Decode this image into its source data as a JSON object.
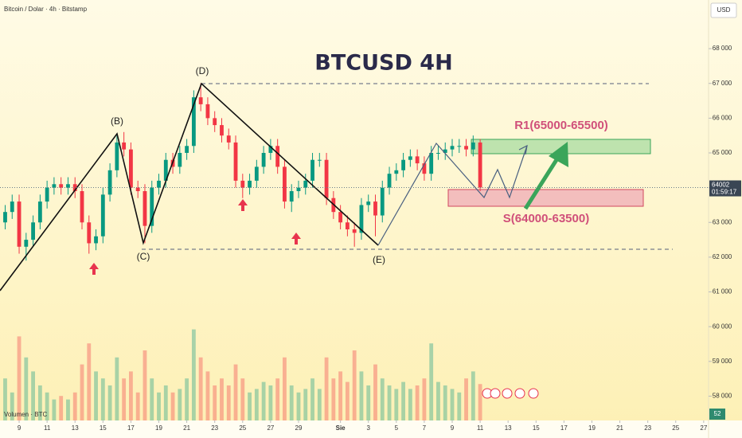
{
  "chart_data": {
    "type": "candlestick",
    "title": "BTCUSD 4H",
    "subtitle": "Bitcoin / Dolar · 4h · Bitstamp",
    "currency": "USD",
    "countdown": "01:59:17",
    "volume_label": "Volumen · BTC",
    "annotations": [
      "(B)",
      "(C)",
      "(D)",
      "(E)",
      "R1(65000-65500)",
      "S(64000-63500)"
    ],
    "color_up": "#089981",
    "color_down": "#f23645",
    "x": [
      -1,
      -0.5,
      0,
      0.5,
      1,
      1.5,
      2,
      2.5,
      3,
      3.5,
      4,
      4.5,
      5,
      5.5,
      6,
      6.5,
      7,
      7.5,
      8,
      8.5,
      9,
      9.5,
      10,
      10.5,
      11,
      11.5,
      12,
      12.5,
      13,
      13.5,
      14,
      14.5,
      15,
      15.5,
      16,
      16.5,
      17,
      17.5,
      18,
      18.5,
      19,
      19.5,
      20,
      20.5,
      21,
      21.5,
      22,
      22.5,
      23,
      23.5,
      24,
      24.5,
      25,
      25.5,
      26,
      26.5,
      27,
      27.5,
      28,
      28.5,
      29,
      29.5,
      30,
      30.5,
      31,
      31.5,
      32,
      32.5,
      33
    ],
    "open": [
      63000,
      63300,
      63600,
      62300,
      62500,
      63000,
      63600,
      64000,
      64100,
      64000,
      64100,
      63900,
      63000,
      62400,
      62600,
      63800,
      64500,
      65300,
      65100,
      64000,
      63900,
      62900,
      64000,
      64200,
      64800,
      64600,
      65000,
      65200,
      66600,
      66400,
      66000,
      65800,
      65500,
      65300,
      64200,
      64000,
      64200,
      64600,
      65000,
      65200,
      64600,
      63600,
      63900,
      64000,
      64200,
      64800,
      64800,
      63700,
      63300,
      63000,
      62800,
      62700,
      63500,
      63600,
      63200,
      64000,
      64400,
      64500,
      64800,
      64900,
      64700,
      64400,
      65000,
      65000,
      65100,
      65200,
      65200,
      65100,
      65300
    ],
    "high": [
      63500,
      63800,
      63800,
      62700,
      63200,
      63800,
      64200,
      64300,
      64300,
      64300,
      64300,
      64100,
      63200,
      62800,
      64000,
      64700,
      65500,
      65600,
      65300,
      64200,
      64100,
      64200,
      64400,
      65000,
      65000,
      65200,
      65400,
      66800,
      67000,
      66600,
      66200,
      66000,
      65700,
      65500,
      64400,
      64400,
      64800,
      65200,
      65400,
      65400,
      64800,
      64100,
      64200,
      64400,
      65000,
      65000,
      65000,
      63900,
      63500,
      63200,
      63000,
      63700,
      63800,
      63800,
      64200,
      64600,
      64700,
      65000,
      65100,
      65100,
      64900,
      65200,
      65200,
      65300,
      65400,
      65400,
      65400,
      65500,
      65400
    ],
    "low": [
      62800,
      63100,
      62100,
      61900,
      62300,
      62800,
      63400,
      63800,
      63800,
      63800,
      63700,
      62800,
      62100,
      62200,
      62400,
      63600,
      64300,
      64900,
      63800,
      63700,
      62400,
      62700,
      63800,
      64000,
      64400,
      64400,
      64800,
      65000,
      66200,
      65800,
      65600,
      65300,
      65100,
      64000,
      63700,
      63800,
      64000,
      64400,
      64800,
      64400,
      63400,
      63300,
      63700,
      63800,
      64000,
      64600,
      63500,
      63100,
      62800,
      62600,
      62300,
      62500,
      63300,
      62600,
      63000,
      63800,
      64200,
      64300,
      64600,
      64500,
      64200,
      64200,
      64800,
      64800,
      64900,
      65000,
      64900,
      64900,
      63900
    ],
    "close": [
      63300,
      63600,
      62300,
      62500,
      63000,
      63600,
      64000,
      64100,
      64000,
      64100,
      63900,
      63000,
      62400,
      62600,
      63800,
      64500,
      65300,
      65100,
      64000,
      63900,
      62900,
      64000,
      64200,
      64800,
      64600,
      65000,
      65200,
      66600,
      66400,
      66000,
      65800,
      65500,
      65300,
      64200,
      64000,
      64200,
      64600,
      65000,
      65200,
      64600,
      63600,
      63900,
      64000,
      64200,
      64800,
      64800,
      63700,
      63300,
      63000,
      62800,
      62700,
      63500,
      63600,
      63200,
      64000,
      64400,
      64500,
      64800,
      64900,
      64700,
      64400,
      65000,
      65000,
      65100,
      65200,
      65200,
      65100,
      65300,
      64002
    ],
    "volume": [
      60,
      40,
      120,
      90,
      70,
      50,
      40,
      30,
      35,
      30,
      40,
      80,
      110,
      70,
      60,
      50,
      90,
      60,
      70,
      40,
      100,
      60,
      40,
      50,
      40,
      45,
      60,
      130,
      90,
      70,
      50,
      60,
      50,
      80,
      60,
      40,
      45,
      55,
      50,
      60,
      90,
      50,
      40,
      45,
      60,
      45,
      90,
      60,
      70,
      55,
      100,
      70,
      50,
      80,
      60,
      50,
      45,
      55,
      45,
      50,
      60,
      110,
      55,
      50,
      45,
      40,
      60,
      70,
      52
    ],
    "volume_lim": [
      0,
      600
    ],
    "ylim": [
      57300,
      69400
    ],
    "yticks": [
      {
        "value": 58000,
        "label": "58 000"
      },
      {
        "value": 59000,
        "label": "59 000"
      },
      {
        "value": 60000,
        "label": "60 000"
      },
      {
        "value": 61000,
        "label": "61 000"
      },
      {
        "value": 62000,
        "label": "62 000"
      },
      {
        "value": 63000,
        "label": "63 000"
      },
      {
        "value": 64000,
        "label": "64 000"
      },
      {
        "value": 65000,
        "label": "65 000"
      },
      {
        "value": 66000,
        "label": "66 000"
      },
      {
        "value": 67000,
        "label": "67 000"
      },
      {
        "value": 68000,
        "label": "68 000"
      }
    ],
    "xlim": [
      -1.37,
      49.35
    ],
    "xticks": [
      {
        "value": 0,
        "label": "9"
      },
      {
        "value": 2,
        "label": "11"
      },
      {
        "value": 4,
        "label": "13"
      },
      {
        "value": 6,
        "label": "15"
      },
      {
        "value": 8,
        "label": "17"
      },
      {
        "value": 10,
        "label": "19"
      },
      {
        "value": 12,
        "label": "21"
      },
      {
        "value": 14,
        "label": "23"
      },
      {
        "value": 16,
        "label": "25"
      },
      {
        "value": 18,
        "label": "27"
      },
      {
        "value": 20,
        "label": "29"
      },
      {
        "value": 23,
        "label": "Sie"
      },
      {
        "value": 25,
        "label": "3"
      },
      {
        "value": 27,
        "label": "5"
      },
      {
        "value": 29,
        "label": "7"
      },
      {
        "value": 31,
        "label": "9"
      },
      {
        "value": 33,
        "label": "11"
      },
      {
        "value": 35,
        "label": "13"
      },
      {
        "value": 37,
        "label": "15"
      },
      {
        "value": 39,
        "label": "17"
      },
      {
        "value": 41,
        "label": "19"
      },
      {
        "value": 43,
        "label": "21"
      },
      {
        "value": 45,
        "label": "23"
      },
      {
        "value": 47,
        "label": "25"
      },
      {
        "value": 49,
        "label": "27"
      }
    ],
    "grid": false
  }
}
